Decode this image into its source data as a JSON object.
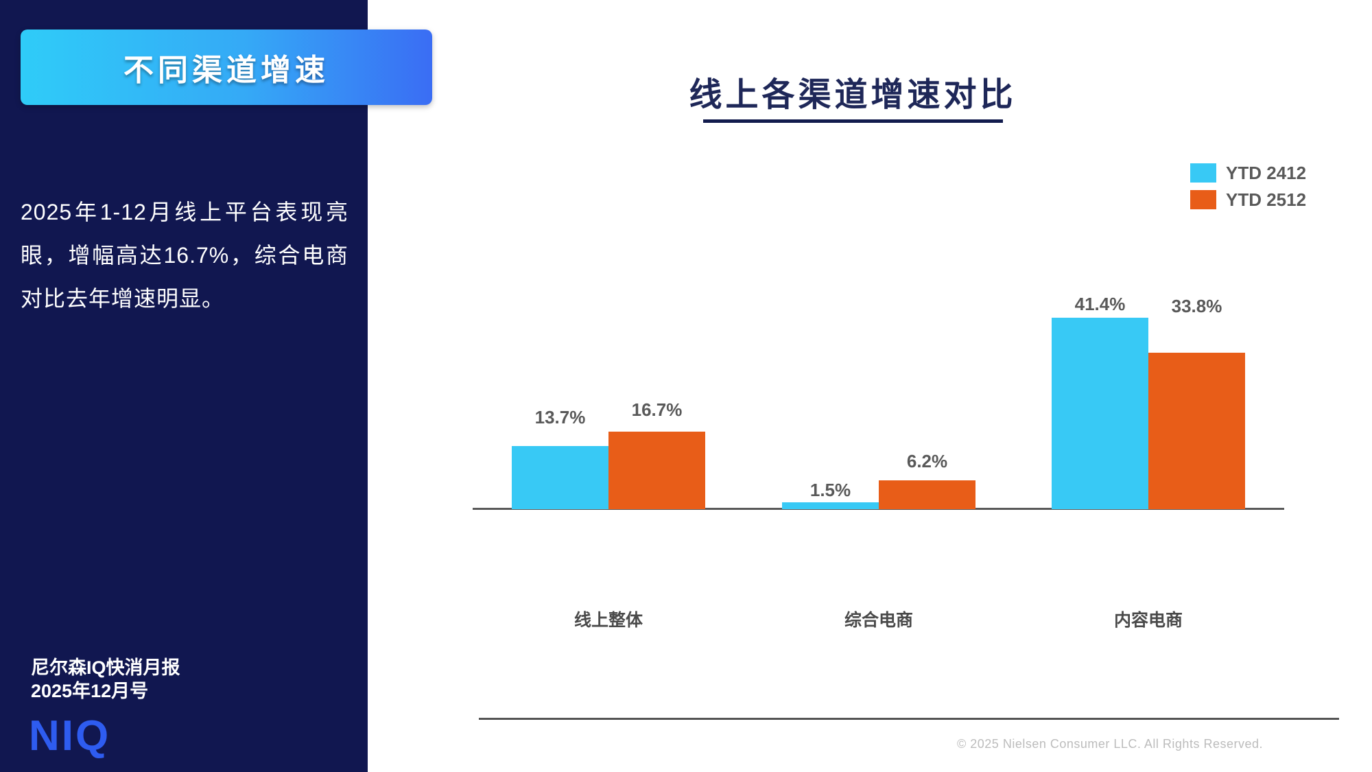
{
  "sidebar": {
    "banner_title": "不同渠道增速",
    "paragraph": "2025年1-12月线上平台表现亮眼，增幅高达16.7%，综合电商对比去年增速明显。",
    "report_name": "尼尔森IQ快消月报",
    "report_issue": "2025年12月号",
    "logo_text": "NIQ"
  },
  "main": {
    "title": "线上各渠道增速对比",
    "copyright": "© 2025 Nielsen Consumer LLC. All Rights Reserved."
  },
  "colors": {
    "sidebar_bg": "#111750",
    "banner_gradient_left": "#2fccf8",
    "banner_gradient_right": "#3a6df4",
    "title_navy": "#1e2758",
    "underline_navy": "#121b4d",
    "series_cyan": "#38c9f5",
    "series_orange": "#e85d18",
    "label_gray": "#595959",
    "axis_gray": "#595959",
    "logo_blue": "#2e5cf0",
    "copyright_gray": "#bcbcbc"
  },
  "chart_data": {
    "type": "bar",
    "title": "线上各渠道增速对比",
    "categories": [
      "线上整体",
      "综合电商",
      "内容电商"
    ],
    "series": [
      {
        "name": "YTD 2412",
        "color": "#38c9f5",
        "values": [
          13.7,
          1.5,
          41.4
        ]
      },
      {
        "name": "YTD 2512",
        "color": "#e85d18",
        "values": [
          16.7,
          6.2,
          33.8
        ]
      }
    ],
    "value_suffix": "%",
    "xlabel": "",
    "ylabel": "",
    "ylim": [
      0,
      45
    ],
    "grid": false,
    "legend_position": "top-right",
    "baseline": true
  }
}
